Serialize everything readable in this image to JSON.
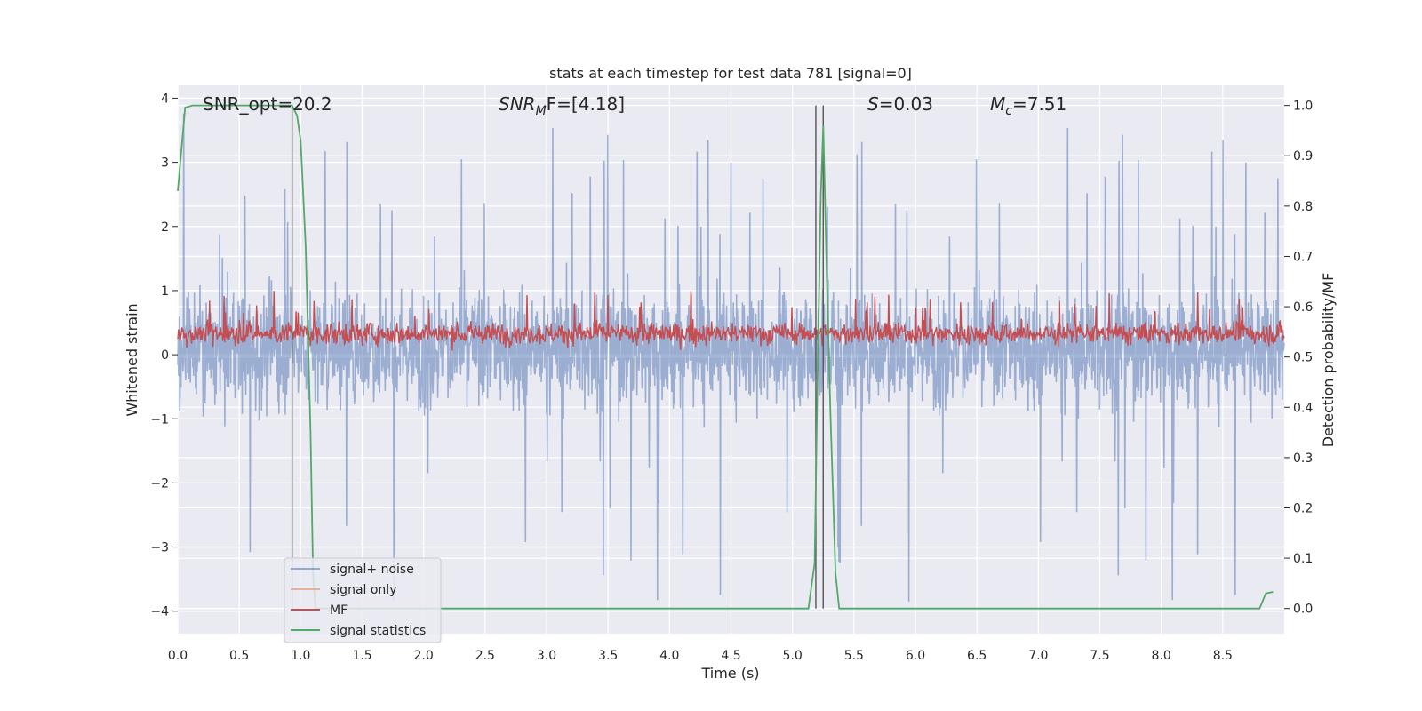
{
  "chart_data": {
    "type": "line",
    "title": "stats at each timestep for test data 781 [signal=0]",
    "xlabel": "Time (s)",
    "ylabel_left": "Whitened strain",
    "ylabel_right": "Detection probability/MF",
    "xlim": [
      0,
      9
    ],
    "ylim_left": [
      -4.35,
      4.2
    ],
    "ylim_right": [
      -0.05,
      1.04
    ],
    "x_ticks": [
      "0.0",
      "0.5",
      "1.0",
      "1.5",
      "2.0",
      "2.5",
      "3.0",
      "3.5",
      "4.0",
      "4.5",
      "5.0",
      "5.5",
      "6.0",
      "6.5",
      "7.0",
      "7.5",
      "8.0",
      "8.5"
    ],
    "y_ticks_left": [
      "4",
      "3",
      "2",
      "1",
      "0",
      "−1",
      "−2",
      "−3",
      "−4"
    ],
    "y_ticks_right": [
      "1.0",
      "0.9",
      "0.8",
      "0.7",
      "0.6",
      "0.5",
      "0.4",
      "0.3",
      "0.2",
      "0.1",
      "0.0"
    ],
    "grid": true,
    "legend_position": "lower-left",
    "annotations": {
      "snr_opt": "SNR_opt=20.2",
      "snr_mf_base": "SNR",
      "snr_mf_sub": "M",
      "snr_mf_rest": "F=[4.18]",
      "s_var": "S",
      "s_value": "=0.03",
      "mc_var": "M",
      "mc_sub": "c",
      "mc_value": "=7.51"
    },
    "vertical_markers": [
      0.93,
      5.19,
      5.25
    ],
    "series": [
      {
        "name": "signal+ noise",
        "color": "#4c72b0",
        "axis": "left",
        "description_values": {
          "typical_range": [
            -1.6,
            1.8
          ],
          "peak_max": 3.8,
          "peak_min": -4.0
        }
      },
      {
        "name": "signal only",
        "color": "#dd8452",
        "axis": "left",
        "x": [],
        "y": []
      },
      {
        "name": "MF",
        "color": "#c44e52",
        "axis": "left",
        "description_values": {
          "typical_range": [
            0.1,
            0.6
          ],
          "peak_max": 1.0
        }
      },
      {
        "name": "signal statistics",
        "color": "#55a868",
        "axis": "right",
        "x": [
          0.0,
          0.06,
          0.12,
          0.3,
          0.6,
          0.9,
          0.93,
          0.97,
          1.0,
          1.04,
          1.08,
          1.1,
          1.12,
          1.2,
          2.0,
          3.0,
          4.0,
          5.0,
          5.13,
          5.18,
          5.2,
          5.23,
          5.25,
          5.28,
          5.31,
          5.35,
          5.38,
          5.5,
          6.0,
          7.0,
          8.0,
          8.8,
          8.85,
          8.91
        ],
        "y": [
          0.83,
          0.996,
          1.0,
          1.0,
          1.0,
          1.0,
          1.0,
          0.98,
          0.93,
          0.72,
          0.35,
          0.07,
          0.0,
          0.0,
          0.0,
          0.0,
          0.0,
          0.0,
          0.0,
          0.09,
          0.4,
          0.82,
          0.96,
          0.65,
          0.38,
          0.07,
          0.0,
          0.0,
          0.0,
          0.0,
          0.0,
          0.0,
          0.03,
          0.033
        ]
      }
    ]
  }
}
